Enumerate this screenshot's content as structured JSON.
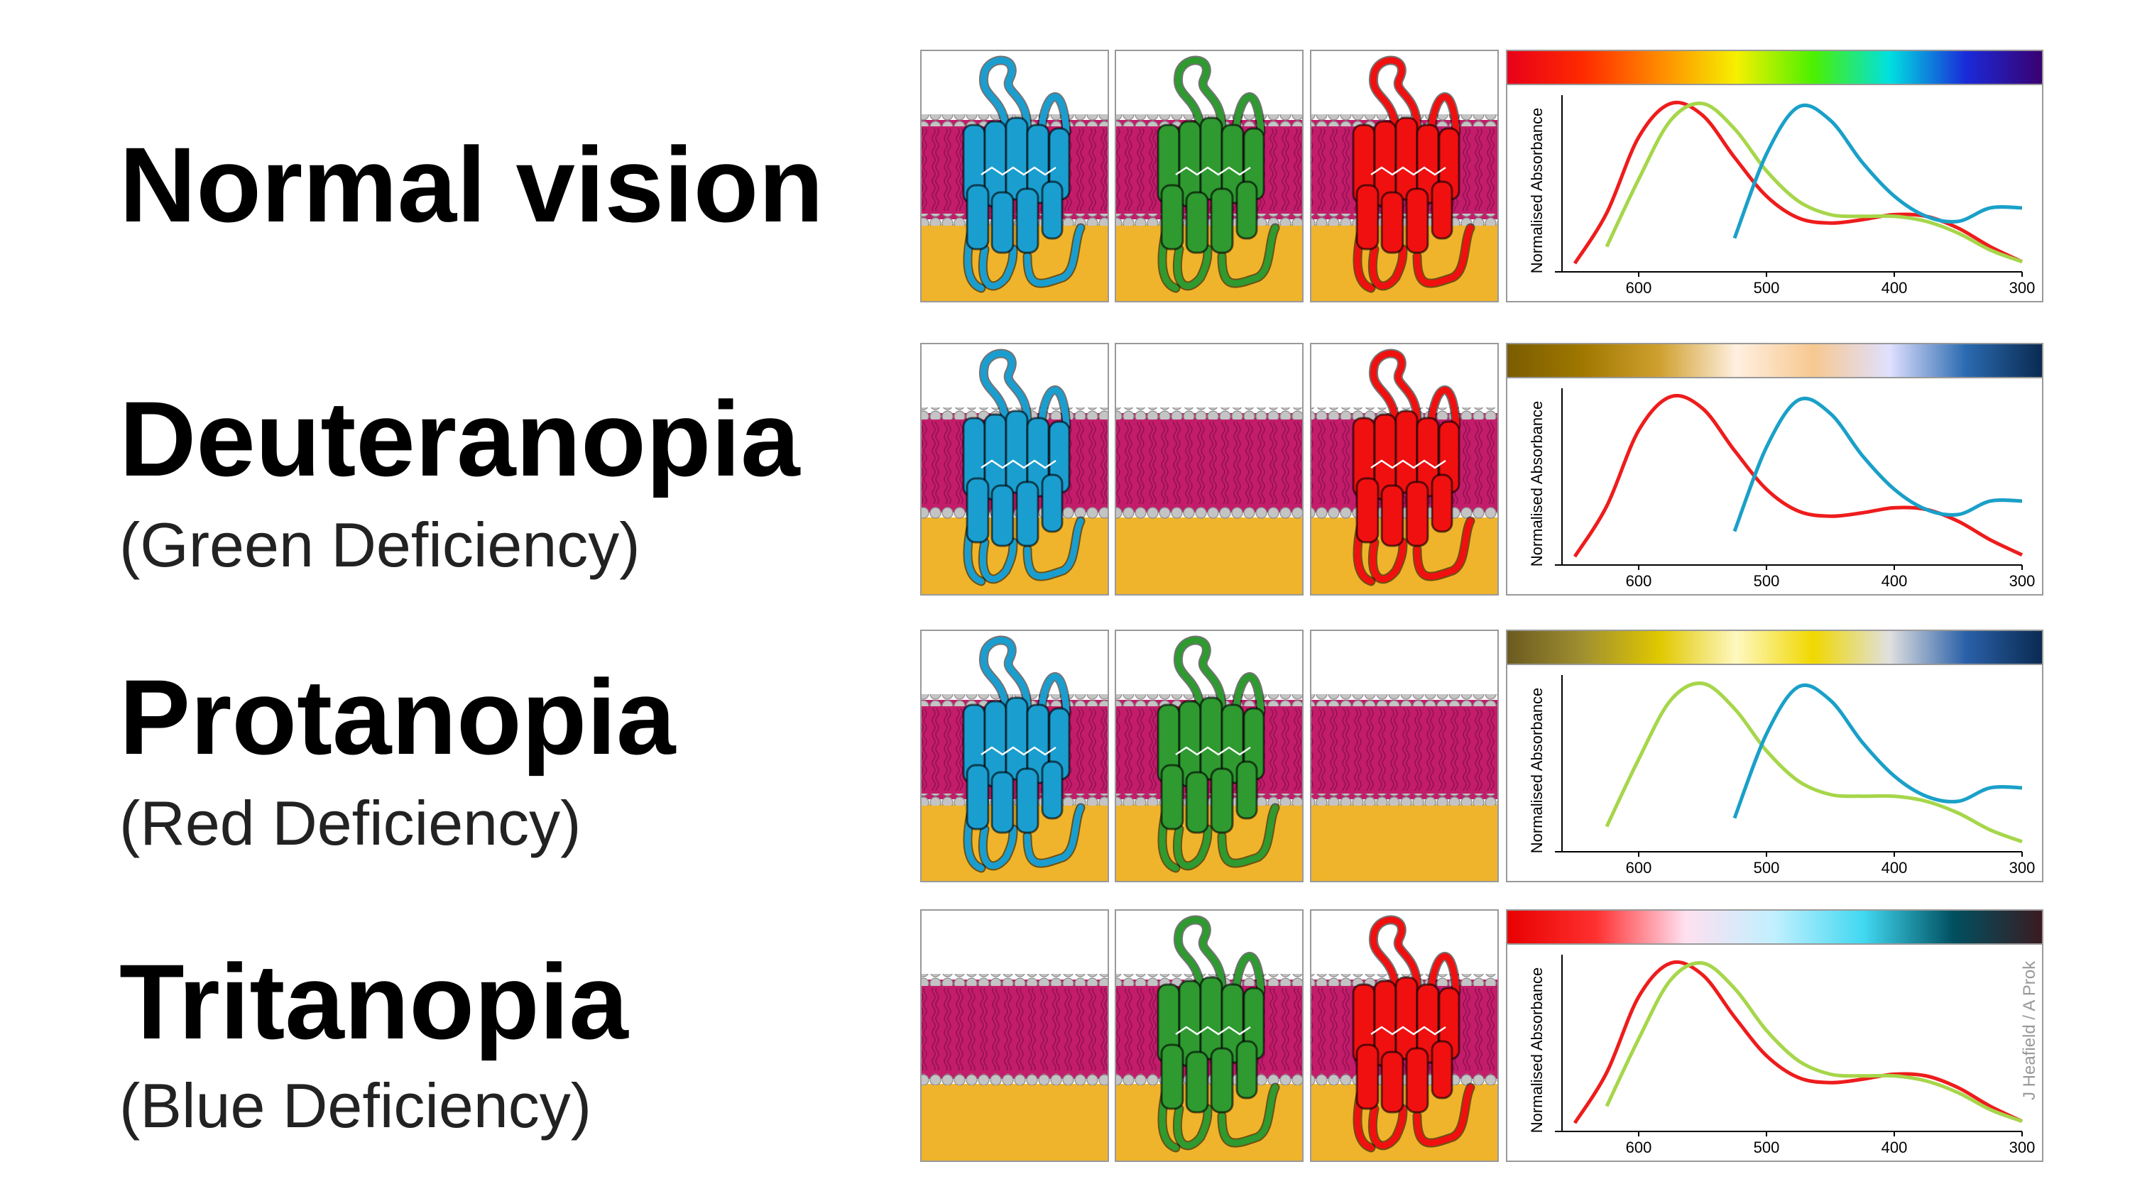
{
  "credit": "J Heafield / A Prok",
  "chart_data": [
    {
      "type": "line",
      "title": "Normal vision",
      "y_label": "Normalised Absorbance",
      "x": [
        650,
        625,
        600,
        575,
        550,
        525,
        500,
        475,
        450,
        425,
        400,
        375,
        350,
        325,
        300
      ],
      "xlim": [
        660,
        300
      ],
      "xticks": [
        600,
        500,
        400,
        300
      ],
      "ylim": [
        0,
        1.05
      ],
      "spectrum": [
        "#e8001a",
        "#ff2a00",
        "#ff8a00",
        "#f5f000",
        "#4cf000",
        "#00e0e0",
        "#1a2ad8",
        "#3a0070"
      ],
      "opsins": [
        "#1a9ed0",
        "#2e9a30",
        "#f01010"
      ],
      "series": [
        {
          "color": "#ee1c1c",
          "values": [
            0.05,
            0.35,
            0.8,
            1.0,
            0.93,
            0.68,
            0.45,
            0.32,
            0.29,
            0.31,
            0.34,
            0.33,
            0.26,
            0.15,
            0.06
          ]
        },
        {
          "color": "#a6d64a",
          "values": [
            null,
            0.15,
            0.55,
            0.9,
            1.0,
            0.85,
            0.6,
            0.42,
            0.34,
            0.33,
            0.33,
            0.3,
            0.23,
            0.13,
            0.06
          ]
        },
        {
          "color": "#1aa0c8",
          "values": [
            null,
            null,
            null,
            null,
            null,
            0.2,
            0.7,
            0.98,
            0.9,
            0.65,
            0.45,
            0.33,
            0.3,
            0.38,
            0.38
          ]
        }
      ]
    },
    {
      "type": "line",
      "title": "Deuteranopia",
      "subtitle": "(Green Deficiency)",
      "y_label": "Normalised Absorbance",
      "x": [
        650,
        625,
        600,
        575,
        550,
        525,
        500,
        475,
        450,
        425,
        400,
        375,
        350,
        325,
        300
      ],
      "xlim": [
        660,
        300
      ],
      "xticks": [
        600,
        500,
        400,
        300
      ],
      "ylim": [
        0,
        1.05
      ],
      "spectrum": [
        "#7a5c00",
        "#a07800",
        "#d0a030",
        "#fff0e0",
        "#f7c890",
        "#e0e0ff",
        "#2a6ab0",
        "#0a2a50"
      ],
      "opsins": [
        "#1a9ed0",
        null,
        "#f01010"
      ],
      "series": [
        {
          "color": "#ee1c1c",
          "values": [
            0.05,
            0.35,
            0.8,
            1.0,
            0.93,
            0.68,
            0.45,
            0.32,
            0.29,
            0.31,
            0.34,
            0.33,
            0.26,
            0.15,
            0.06
          ]
        },
        {
          "color": "#1aa0c8",
          "values": [
            null,
            null,
            null,
            null,
            null,
            0.2,
            0.7,
            0.98,
            0.9,
            0.65,
            0.45,
            0.33,
            0.3,
            0.38,
            0.38
          ]
        }
      ]
    },
    {
      "type": "line",
      "title": "Protanopia",
      "subtitle": "(Red Deficiency)",
      "y_label": "Normalised Absorbance",
      "x": [
        650,
        625,
        600,
        575,
        550,
        525,
        500,
        475,
        450,
        425,
        400,
        375,
        350,
        325,
        300
      ],
      "xlim": [
        660,
        300
      ],
      "xticks": [
        600,
        500,
        400,
        300
      ],
      "ylim": [
        0,
        1.05
      ],
      "spectrum": [
        "#6a5a20",
        "#a09030",
        "#e0c800",
        "#fff8c0",
        "#f0d800",
        "#e0e0e0",
        "#2a60a8",
        "#0a2a50"
      ],
      "opsins": [
        "#1a9ed0",
        "#2e9a30",
        null
      ],
      "series": [
        {
          "color": "#a6d64a",
          "values": [
            null,
            0.15,
            0.55,
            0.9,
            1.0,
            0.85,
            0.6,
            0.42,
            0.34,
            0.33,
            0.33,
            0.3,
            0.23,
            0.13,
            0.06
          ]
        },
        {
          "color": "#1aa0c8",
          "values": [
            null,
            null,
            null,
            null,
            null,
            0.2,
            0.7,
            0.98,
            0.9,
            0.65,
            0.45,
            0.33,
            0.3,
            0.38,
            0.38
          ]
        }
      ]
    },
    {
      "type": "line",
      "title": "Tritanopia",
      "subtitle": "(Blue Deficiency)",
      "y_label": "Normalised Absorbance",
      "x": [
        650,
        625,
        600,
        575,
        550,
        525,
        500,
        475,
        450,
        425,
        400,
        375,
        350,
        325,
        300
      ],
      "xlim": [
        660,
        300
      ],
      "xticks": [
        600,
        500,
        400,
        300
      ],
      "ylim": [
        0,
        1.05
      ],
      "spectrum": [
        "#e80000",
        "#ff3030",
        "#ffe0f0",
        "#c0f0ff",
        "#40d8f0",
        "#005060",
        "#3a1a20"
      ],
      "opsins": [
        null,
        "#2e9a30",
        "#f01010"
      ],
      "series": [
        {
          "color": "#ee1c1c",
          "values": [
            0.05,
            0.35,
            0.8,
            1.0,
            0.93,
            0.68,
            0.45,
            0.32,
            0.29,
            0.31,
            0.34,
            0.33,
            0.26,
            0.15,
            0.06
          ]
        },
        {
          "color": "#a6d64a",
          "values": [
            null,
            0.15,
            0.55,
            0.9,
            1.0,
            0.85,
            0.6,
            0.42,
            0.34,
            0.33,
            0.33,
            0.3,
            0.23,
            0.13,
            0.06
          ]
        }
      ]
    }
  ]
}
